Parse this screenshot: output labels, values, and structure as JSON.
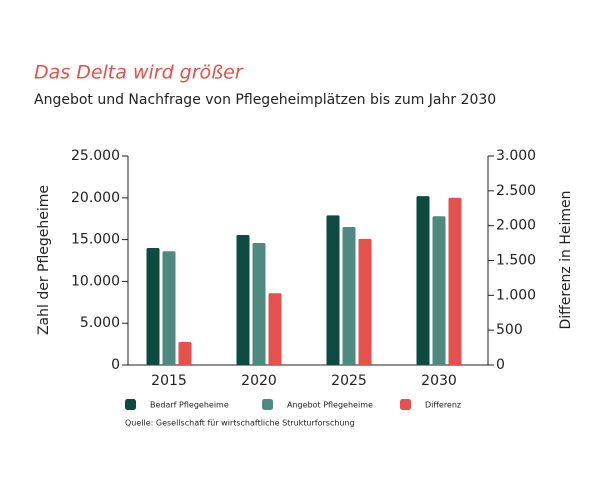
{
  "chart_data": {
    "type": "bar",
    "title": "Das Delta wird größer",
    "subtitle": "Angebot und Nachfrage von Pflegeheimplätzen bis zum Jahr 2030",
    "y_label": "Zahl der Pflegeheime",
    "y2_label": "Differenz in Heimen",
    "source": "Quelle: Gesellschaft für wirtschaftliche Strukturforschung",
    "categories": [
      "2015",
      "2020",
      "2025",
      "2030"
    ],
    "series": [
      {
        "name": "Bedarf Pflegeheime",
        "color": "#0d4a3f",
        "values": [
          14000,
          15550,
          17900,
          20200
        ]
      },
      {
        "name": "Angebot Pflegeheime",
        "color": "#4e8a80",
        "values": [
          13600,
          14600,
          16500,
          17800
        ]
      },
      {
        "name": "Differenz",
        "color": "#e5524d",
        "axis": "y2",
        "values": [
          330,
          1030,
          1810,
          2400
        ]
      }
    ],
    "ylim": [
      0,
      25000
    ],
    "yticks": [
      0,
      {
        "value": 5000,
        "label": "5.000"
      },
      {
        "value": 10000,
        "label": "10.000"
      },
      {
        "value": 15000,
        "label": "15.000"
      },
      {
        "value": 20000,
        "label": "20.000"
      },
      {
        "value": 25000,
        "label": "25.000"
      }
    ],
    "y2lim": [
      0,
      3000
    ],
    "y2ticks": [
      0,
      500,
      {
        "value": 1000,
        "label": "1.000"
      },
      {
        "value": 1500,
        "label": "1.500"
      },
      {
        "value": 2000,
        "label": "2.000"
      },
      {
        "value": 2500,
        "label": "2.500"
      },
      {
        "value": 3000,
        "label": "3.000"
      }
    ]
  }
}
